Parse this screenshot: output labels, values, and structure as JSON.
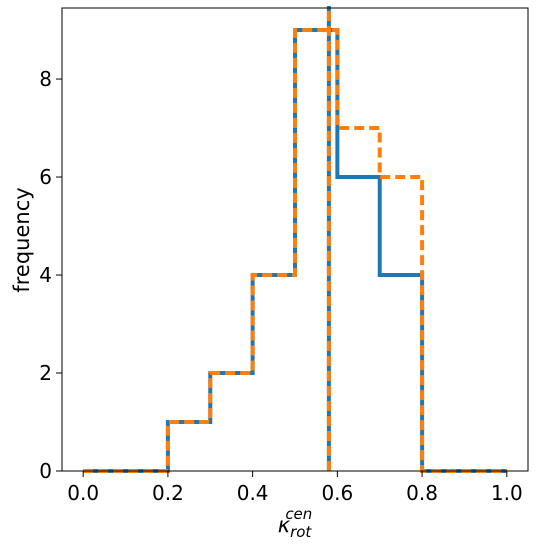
{
  "chart_data": {
    "type": "histogram",
    "xlabel": "κ",
    "xlabel_sub": "rot",
    "xlabel_sup": "cen",
    "ylabel": "frequency",
    "xlim": [
      -0.05,
      1.05
    ],
    "ylim": [
      0,
      9.45
    ],
    "grid": false,
    "bin_edges": [
      0.0,
      0.1,
      0.2,
      0.3,
      0.4,
      0.5,
      0.6,
      0.7,
      0.8,
      0.9,
      1.0
    ],
    "xticks": [
      0.0,
      0.2,
      0.4,
      0.6,
      0.8,
      1.0
    ],
    "xtick_labels": [
      "0.0",
      "0.2",
      "0.4",
      "0.6",
      "0.8",
      "1.0"
    ],
    "yticks": [
      0,
      2,
      4,
      6,
      8
    ],
    "ytick_labels": [
      "0",
      "2",
      "4",
      "6",
      "8"
    ],
    "series": [
      {
        "color": "#1f77b4",
        "style": "solid",
        "counts": [
          0,
          0,
          1,
          2,
          4,
          9,
          6,
          4,
          0,
          0
        ],
        "vline": 0.58
      },
      {
        "color": "#ff7f0e",
        "style": "dashed",
        "counts": [
          0,
          0,
          1,
          2,
          4,
          9,
          7,
          6,
          0,
          0
        ],
        "vline": 0.58
      }
    ]
  }
}
